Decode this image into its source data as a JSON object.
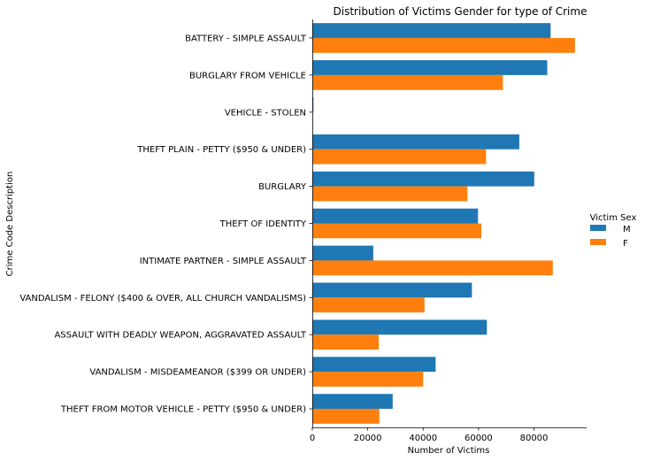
{
  "chart_data": {
    "type": "bar",
    "orientation": "horizontal",
    "title": "Distribution of Victims Gender for type of Crime",
    "xlabel": "Number of Victims",
    "ylabel": "Crime Code Description",
    "xlim": [
      0,
      99000
    ],
    "xticks": [
      0,
      20000,
      40000,
      60000,
      80000
    ],
    "grid": false,
    "legend": {
      "title": "Victim Sex",
      "placement": "right"
    },
    "categories": [
      "BATTERY - SIMPLE ASSAULT",
      "BURGLARY FROM VEHICLE",
      "VEHICLE - STOLEN",
      "THEFT PLAIN - PETTY ($950 & UNDER)",
      "BURGLARY",
      "THEFT OF IDENTITY",
      "INTIMATE PARTNER - SIMPLE ASSAULT",
      "VANDALISM - FELONY ($400 & OVER, ALL CHURCH VANDALISMS)",
      "ASSAULT WITH DEADLY WEAPON, AGGRAVATED ASSAULT",
      "VANDALISM - MISDEAMEANOR ($399 OR UNDER)",
      "THEFT FROM MOTOR VEHICLE - PETTY ($950 & UNDER)"
    ],
    "series": [
      {
        "name": "M",
        "color": "#1f77b4",
        "values": [
          86000,
          84800,
          400,
          74700,
          80100,
          59800,
          22000,
          57600,
          63000,
          44500,
          29000
        ]
      },
      {
        "name": "F",
        "color": "#ff7f0e",
        "values": [
          94800,
          68800,
          0,
          62700,
          56000,
          61000,
          86800,
          40500,
          24000,
          40000,
          24200
        ]
      }
    ]
  }
}
